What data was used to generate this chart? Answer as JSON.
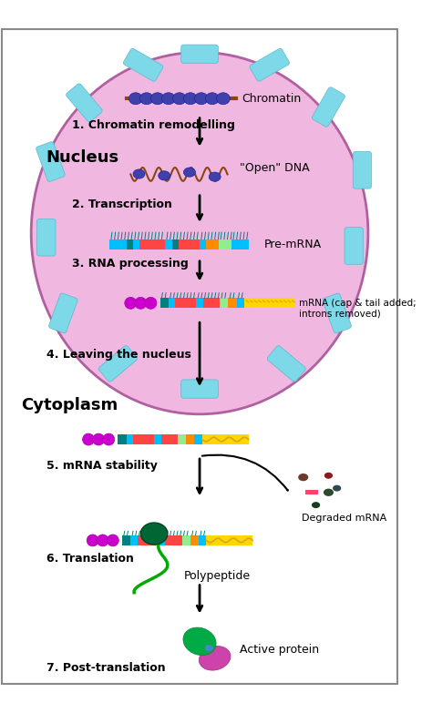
{
  "bg_color": "#ffffff",
  "nucleus_color": "#f0b8e0",
  "nucleus_border_color": "#d080b0",
  "nuclear_pore_color": "#7dd8e8",
  "title": "",
  "nucleus_label": "Nucleus",
  "cytoplasm_label": "Cytoplasm",
  "steps": [
    "1. Chromatin remodelling",
    "2. Transcription",
    "3. RNA processing",
    "4. Leaving the nucleus",
    "5. mRNA stability",
    "6. Translation",
    "7. Post-translation"
  ],
  "step_labels": [
    "Chromatin",
    "\"Open\" DNA",
    "Pre-mRNA",
    "mRNA (cap & tail added;\nintrons removed)",
    "Degraded mRNA",
    "Polypeptide",
    "Active protein"
  ]
}
